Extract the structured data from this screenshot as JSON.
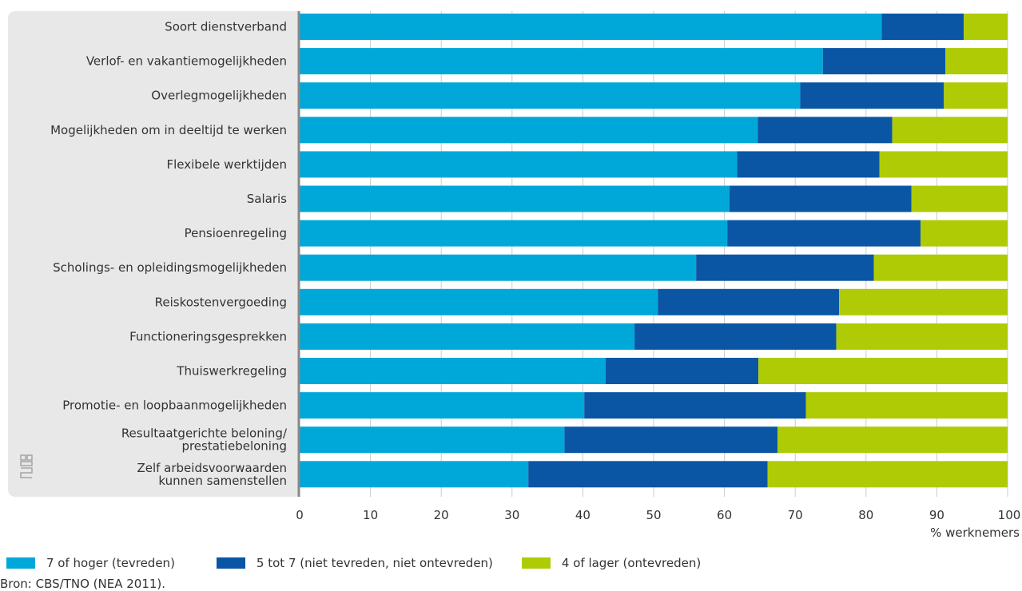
{
  "chart_data": {
    "type": "bar",
    "orientation": "horizontal",
    "stacked": true,
    "categories": [
      "Soort dienstverband",
      "Verlof- en vakantiemogelijkheden",
      "Overlegmogelijkheden",
      "Mogelijkheden om in deeltijd te werken",
      "Flexibele werktijden",
      "Salaris",
      "Pensioenregeling",
      "Scholings- en opleidingsmogelijkheden",
      "Reiskostenvergoeding",
      "Functioneringsgesprekken",
      "Thuiswerkregeling",
      "Promotie- en loopbaanmogelijkheden",
      "Resultaatgerichte beloning/ prestatiebeloning",
      "Zelf arbeidsvoorwaarden kunnen samenstellen"
    ],
    "category_lines": [
      [
        "Soort dienstverband"
      ],
      [
        "Verlof- en vakantiemogelijkheden"
      ],
      [
        "Overlegmogelijkheden"
      ],
      [
        "Mogelijkheden om in deeltijd te werken"
      ],
      [
        "Flexibele werktijden"
      ],
      [
        "Salaris"
      ],
      [
        "Pensioenregeling"
      ],
      [
        "Scholings- en opleidingsmogelijkheden"
      ],
      [
        "Reiskostenvergoeding"
      ],
      [
        "Functioneringsgesprekken"
      ],
      [
        "Thuiswerkregeling"
      ],
      [
        "Promotie- en loopbaanmogelijkheden"
      ],
      [
        "Resultaatgerichte beloning/",
        "prestatiebeloning"
      ],
      [
        "Zelf arbeidsvoorwaarden",
        "kunnen samenstellen"
      ]
    ],
    "series": [
      {
        "name": "7 of hoger (tevreden)",
        "color": "#00a8d9",
        "values": [
          82.2,
          73.9,
          70.7,
          64.7,
          61.8,
          60.7,
          60.4,
          56.0,
          50.6,
          47.3,
          43.2,
          40.2,
          37.4,
          32.3
        ]
      },
      {
        "name": "5 tot 7 (niet tevreden, niet ontevreden)",
        "color": "#0b56a4",
        "values": [
          11.6,
          17.3,
          20.3,
          19.0,
          20.1,
          25.7,
          27.3,
          25.1,
          25.6,
          28.5,
          21.6,
          31.3,
          30.1,
          33.8
        ]
      },
      {
        "name": "4 of lager (ontevreden)",
        "color": "#afcb05",
        "values": [
          6.2,
          8.8,
          9.0,
          16.3,
          18.1,
          13.6,
          12.3,
          18.9,
          23.8,
          24.2,
          35.2,
          28.5,
          32.5,
          33.9
        ]
      }
    ],
    "xlim": [
      0,
      100
    ],
    "xticks": [
      0,
      10,
      20,
      30,
      40,
      50,
      60,
      70,
      80,
      90,
      100
    ],
    "xlabel": "% werknemers",
    "grid": true
  },
  "colors": {
    "label_panel": "#e8e8e8",
    "axis": "#888888",
    "grid": "#cccccc"
  },
  "source": "Bron: CBS/TNO (NEA 2011).",
  "logo_icon": "cbs-logo-icon"
}
